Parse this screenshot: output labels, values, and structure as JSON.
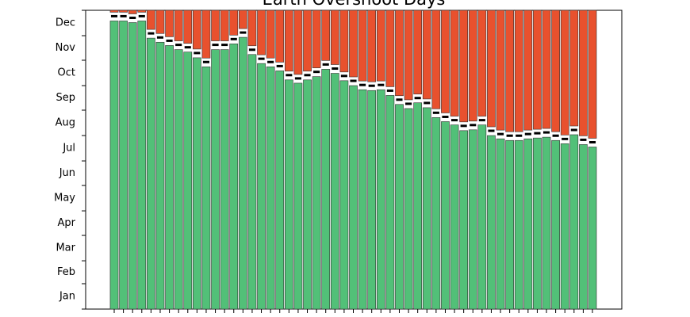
{
  "chart_data": {
    "type": "stacked-bar",
    "title": "Earth Overshoot Days",
    "categories": [
      null,
      null,
      null,
      null,
      null,
      null,
      null,
      null,
      null,
      null,
      null,
      null,
      null,
      null,
      null,
      null,
      null,
      null,
      null,
      null,
      null,
      null,
      null,
      null,
      null,
      null,
      null,
      null,
      null,
      null,
      null,
      null,
      null,
      null,
      null,
      null,
      null,
      null,
      null,
      null,
      null,
      null,
      null,
      null,
      null,
      null,
      null,
      null,
      null,
      null,
      null,
      null,
      null
    ],
    "values": [
      352,
      352,
      350,
      352,
      331,
      326,
      322,
      317,
      314,
      307,
      296,
      317,
      317,
      324,
      332,
      311,
      300,
      296,
      291,
      280,
      276,
      280,
      284,
      293,
      288,
      279,
      273,
      268,
      267,
      268,
      261,
      250,
      245,
      252,
      246,
      234,
      229,
      225,
      218,
      219,
      225,
      212,
      208,
      206,
      206,
      208,
      209,
      210,
      206,
      202,
      213,
      201,
      198
    ],
    "color": "#52c078",
    "remainder_color": "#e8512e",
    "ylim": [
      0,
      365
    ],
    "yticks": [
      {
        "value": 15.5,
        "label": "Jan"
      },
      {
        "value": 45,
        "label": "Feb"
      },
      {
        "value": 74.5,
        "label": "Mar"
      },
      {
        "value": 105,
        "label": "Apr"
      },
      {
        "value": 135.5,
        "label": "May"
      },
      {
        "value": 166,
        "label": "Jun"
      },
      {
        "value": 196.5,
        "label": "Jul"
      },
      {
        "value": 227.5,
        "label": "Aug"
      },
      {
        "value": 258,
        "label": "Sep"
      },
      {
        "value": 288.5,
        "label": "Oct"
      },
      {
        "value": 319,
        "label": "Nov"
      },
      {
        "value": 349.5,
        "label": "Dec"
      }
    ],
    "yticks_minor": [
      0,
      31,
      59,
      90,
      120,
      151,
      181,
      212,
      243,
      273,
      304,
      334,
      365
    ]
  }
}
